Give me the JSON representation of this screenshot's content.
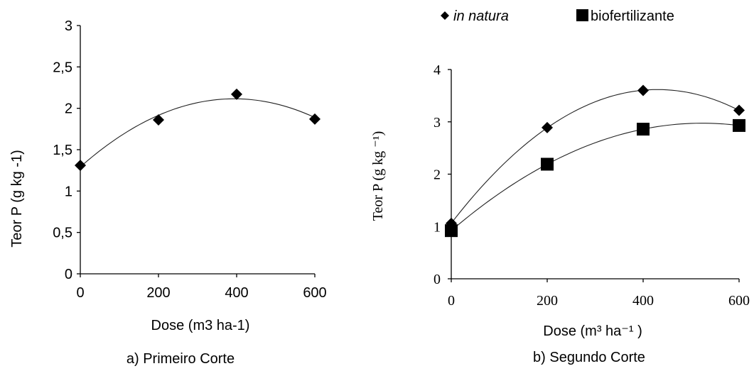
{
  "chart_data": [
    {
      "type": "scatter",
      "caption": "a) Primeiro Corte",
      "xlabel": "Dose (m3 ha-1)",
      "ylabel": "Teor P (g  kg -1)",
      "x_ticks": [
        "0",
        "200",
        "400",
        "600"
      ],
      "y_ticks": [
        "0",
        "0,5",
        "1",
        "1,5",
        "2",
        "2,5",
        "3"
      ],
      "xlim": [
        0,
        600
      ],
      "ylim": [
        0,
        3
      ],
      "grid": false,
      "legend": "none",
      "series": [
        {
          "marker": "diamond",
          "x": [
            0,
            200,
            400,
            600
          ],
          "y": [
            1.31,
            1.86,
            2.17,
            1.87
          ],
          "trendline": "polynomial-2"
        }
      ]
    },
    {
      "type": "scatter",
      "caption": "b) Segundo Corte",
      "xlabel": "Dose (m³ ha⁻¹ )",
      "ylabel": "Teor P (g  kg ⁻¹)",
      "x_ticks": [
        "0",
        "200",
        "400",
        "600"
      ],
      "y_ticks": [
        "0",
        "1",
        "2",
        "3",
        "4"
      ],
      "xlim": [
        0,
        600
      ],
      "ylim": [
        0,
        4
      ],
      "grid": false,
      "legend": "top",
      "series": [
        {
          "name": "in natura",
          "marker": "diamond",
          "x": [
            0,
            200,
            400,
            600
          ],
          "y": [
            1.06,
            2.89,
            3.6,
            3.22
          ],
          "trendline": "polynomial-2"
        },
        {
          "name": "biofertilizante",
          "marker": "square",
          "x": [
            0,
            200,
            400,
            600
          ],
          "y": [
            0.92,
            2.19,
            2.86,
            2.93
          ],
          "trendline": "polynomial-2"
        }
      ]
    }
  ]
}
